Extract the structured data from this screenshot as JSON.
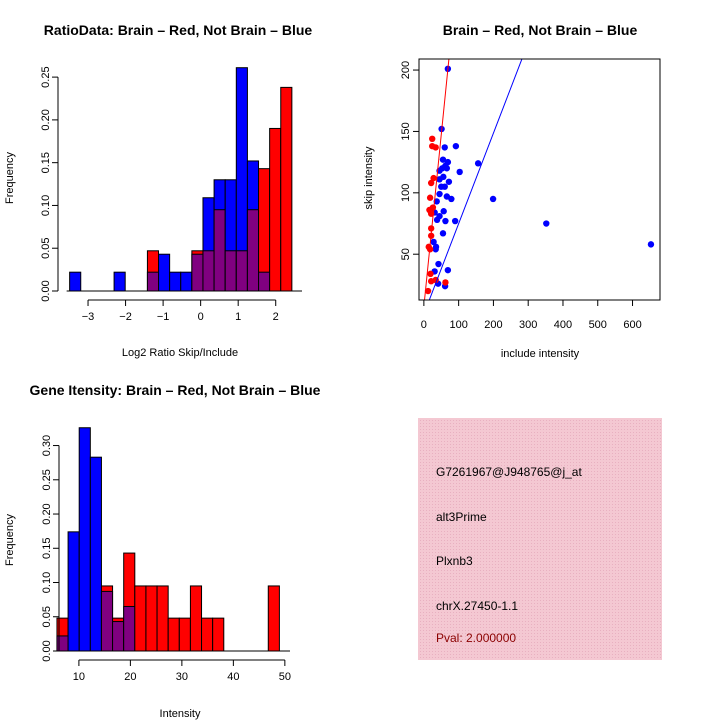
{
  "colors": {
    "red": "#ff0000",
    "blue": "#0000ff",
    "overlap": "#800080",
    "info_bg": "#f2c4cf",
    "pval": "#8b0000"
  },
  "chart_data": [
    {
      "type": "bar",
      "title": "RatioData: Brain – Red, Not Brain – Blue",
      "xlabel": "Log2 Ratio Skip/Include",
      "ylabel": "Frequency",
      "bin_start": -3.49,
      "bin_width": 0.296,
      "xticks": [
        -3,
        -2,
        -1,
        0,
        1,
        2
      ],
      "yticks": [
        "0.00",
        "0.05",
        "0.10",
        "0.15",
        "0.20",
        "0.25"
      ],
      "xlim": [
        -3.8,
        2.7
      ],
      "ylim": [
        0,
        0.27
      ],
      "series": [
        {
          "name": "Brain",
          "color": "red",
          "values": [
            0,
            0,
            0,
            0,
            0,
            0,
            0,
            0.047,
            0,
            0,
            0,
            0.047,
            0.047,
            0.095,
            0.047,
            0.047,
            0.095,
            0.143,
            0.19,
            0.238
          ]
        },
        {
          "name": "Not Brain",
          "color": "blue",
          "values": [
            0.022,
            0,
            0,
            0,
            0.022,
            0,
            0,
            0.022,
            0.043,
            0.022,
            0.022,
            0.043,
            0.109,
            0.13,
            0.13,
            0.261,
            0.152,
            0.022,
            0,
            0
          ]
        }
      ]
    },
    {
      "type": "scatter",
      "title": "Brain – Red, Not Brain – Blue",
      "xlabel": "include intensity",
      "ylabel": "skip intensity",
      "xticks": [
        0,
        100,
        200,
        300,
        400,
        500,
        600
      ],
      "yticks": [
        50,
        100,
        150,
        200
      ],
      "xlim": [
        -14,
        679
      ],
      "ylim": [
        12.7,
        209
      ],
      "series": [
        {
          "name": "Brain",
          "color": "red",
          "points": [
            [
              24,
              144
            ],
            [
              24,
              138
            ],
            [
              34,
              137
            ],
            [
              28,
              112
            ],
            [
              21,
              108
            ],
            [
              18,
              96
            ],
            [
              16,
              86
            ],
            [
              21,
              83
            ],
            [
              26,
              88
            ],
            [
              21,
              71
            ],
            [
              21,
              65
            ],
            [
              14,
              56
            ],
            [
              18,
              54
            ],
            [
              19,
              34
            ],
            [
              21,
              28
            ],
            [
              34,
              29
            ],
            [
              62,
              27
            ],
            [
              12,
              20
            ]
          ],
          "fit": {
            "intercept": 7.4,
            "slope": 2.8
          }
        },
        {
          "name": "Not Brain",
          "color": "blue",
          "points": [
            [
              69,
              201
            ],
            [
              51,
              152
            ],
            [
              60,
              137
            ],
            [
              92,
              138
            ],
            [
              55,
              127
            ],
            [
              69,
              125
            ],
            [
              62,
              122
            ],
            [
              45,
              118
            ],
            [
              53,
              120
            ],
            [
              66,
              120
            ],
            [
              156,
              124
            ],
            [
              103,
              117
            ],
            [
              45,
              111
            ],
            [
              56,
              113
            ],
            [
              72,
              109
            ],
            [
              50,
              105
            ],
            [
              60,
              105
            ],
            [
              45,
              99
            ],
            [
              66,
              97
            ],
            [
              79,
              95
            ],
            [
              37,
              93
            ],
            [
              199,
              95
            ],
            [
              352,
              75
            ],
            [
              653,
              58
            ],
            [
              57,
              85
            ],
            [
              31,
              84
            ],
            [
              45,
              81
            ],
            [
              38,
              78
            ],
            [
              62,
              77
            ],
            [
              90,
              77
            ],
            [
              55,
              67
            ],
            [
              28,
              60
            ],
            [
              34,
              54
            ],
            [
              35,
              56
            ],
            [
              42,
              42
            ],
            [
              31,
              36
            ],
            [
              69,
              37
            ],
            [
              41,
              26
            ],
            [
              61,
              24
            ]
          ],
          "fit": {
            "intercept": 1.2,
            "slope": 0.737
          }
        }
      ]
    },
    {
      "type": "bar",
      "title": "Gene Itensity: Brain – Red, Not Brain – Blue",
      "xlabel": "Intensity",
      "ylabel": "Frequency",
      "bin_start": 5.74,
      "bin_width": 2.16,
      "xticks": [
        10,
        20,
        30,
        40,
        50
      ],
      "yticks": [
        "0.00",
        "0.05",
        "0.10",
        "0.15",
        "0.20",
        "0.25",
        "0.30"
      ],
      "xlim": [
        4,
        51
      ],
      "ylim": [
        0,
        0.33
      ],
      "series": [
        {
          "name": "Brain",
          "color": "red",
          "values": [
            0.048,
            0,
            0,
            0,
            0.095,
            0.048,
            0.143,
            0.095,
            0.095,
            0.095,
            0.048,
            0.048,
            0.095,
            0.048,
            0.048,
            0,
            0,
            0,
            0,
            0.095
          ]
        },
        {
          "name": "Not Brain",
          "color": "blue",
          "values": [
            0.022,
            0.174,
            0.326,
            0.283,
            0.087,
            0.043,
            0.065,
            0,
            0,
            0,
            0,
            0,
            0,
            0,
            0,
            0,
            0,
            0,
            0,
            0
          ]
        }
      ]
    }
  ],
  "info": {
    "probe": "G7261967@J948765@j_at",
    "event_type": "alt3Prime",
    "gene": "Plxnb3",
    "location": "chrX.27450-1.1",
    "pval": "Pval: 2.000000"
  }
}
